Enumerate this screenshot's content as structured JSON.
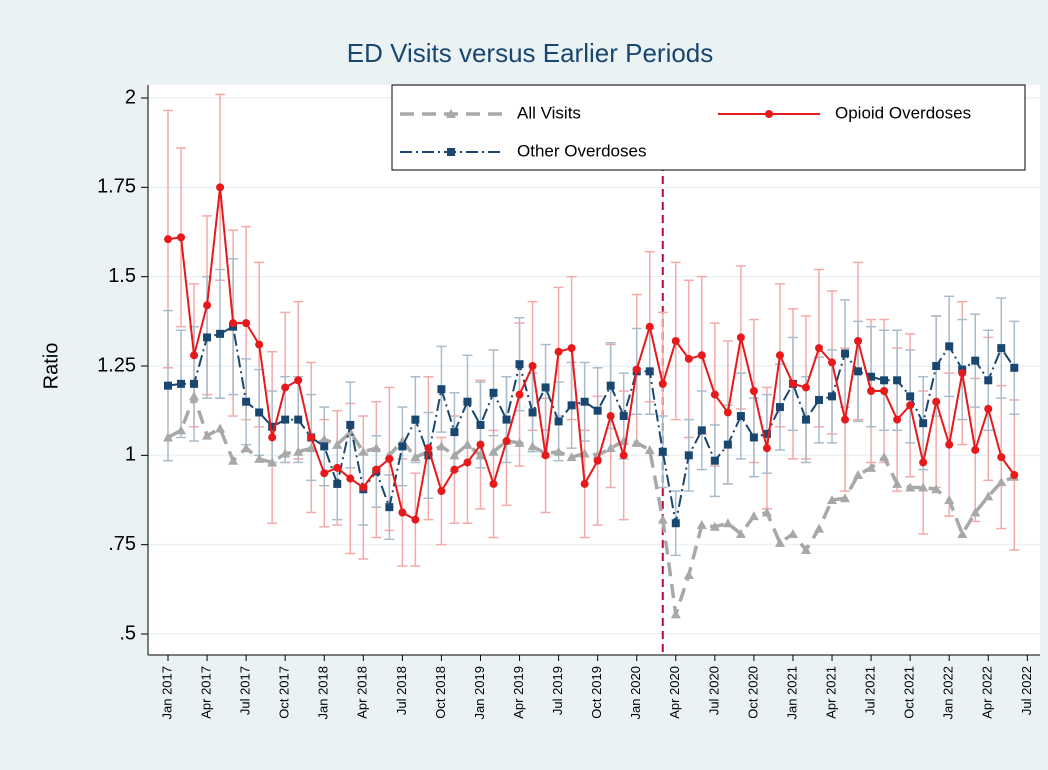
{
  "chart_data": {
    "type": "line",
    "title": "ED Visits versus Earlier Periods",
    "y_label": "Ratio",
    "x": [
      "2017-01",
      "2017-02",
      "2017-03",
      "2017-04",
      "2017-05",
      "2017-06",
      "2017-07",
      "2017-08",
      "2017-09",
      "2017-10",
      "2017-11",
      "2017-12",
      "2018-01",
      "2018-02",
      "2018-03",
      "2018-04",
      "2018-05",
      "2018-06",
      "2018-07",
      "2018-08",
      "2018-09",
      "2018-10",
      "2018-11",
      "2018-12",
      "2019-01",
      "2019-02",
      "2019-03",
      "2019-04",
      "2019-05",
      "2019-06",
      "2019-07",
      "2019-08",
      "2019-09",
      "2019-10",
      "2019-11",
      "2019-12",
      "2020-01",
      "2020-02",
      "2020-03",
      "2020-04",
      "2020-05",
      "2020-06",
      "2020-07",
      "2020-08",
      "2020-09",
      "2020-10",
      "2020-11",
      "2020-12",
      "2021-01",
      "2021-02",
      "2021-03",
      "2021-04",
      "2021-05",
      "2021-06",
      "2021-07",
      "2021-08",
      "2021-09",
      "2021-10",
      "2021-11",
      "2021-12",
      "2022-01",
      "2022-02",
      "2022-03",
      "2022-04",
      "2022-05",
      "2022-06"
    ],
    "series": [
      {
        "name": "All Visits",
        "color": "#a8a8a8",
        "marker": "triangle",
        "dash": "14 8",
        "values": [
          1.05,
          1.07,
          1.165,
          1.055,
          1.075,
          0.985,
          1.02,
          0.99,
          0.98,
          1.005,
          1.01,
          1.02,
          1.045,
          1.03,
          1.065,
          1.01,
          1.02,
          1.0,
          1.04,
          0.995,
          1.01,
          1.025,
          1.0,
          1.03,
          1.0,
          1.01,
          1.04,
          1.035,
          1.025,
          1.005,
          1.01,
          0.995,
          1.005,
          1.0,
          1.02,
          1.04,
          1.035,
          1.015,
          0.82,
          0.555,
          0.665,
          0.805,
          0.8,
          0.81,
          0.78,
          0.83,
          0.84,
          0.755,
          0.78,
          0.735,
          0.795,
          0.875,
          0.88,
          0.945,
          0.965,
          0.995,
          0.92,
          0.91,
          0.91,
          0.905,
          0.875,
          0.78,
          0.84,
          0.885,
          0.925,
          0.94
        ]
      },
      {
        "name": "Opioid Overdoses",
        "color": "#e8191b",
        "marker": "circle",
        "dash": "none",
        "error_color": "#f5a9a9",
        "values": [
          1.605,
          1.61,
          1.28,
          1.42,
          1.75,
          1.37,
          1.37,
          1.31,
          1.05,
          1.19,
          1.21,
          1.05,
          0.95,
          0.965,
          0.935,
          0.91,
          0.96,
          0.99,
          0.84,
          0.82,
          1.02,
          0.9,
          0.96,
          0.98,
          1.03,
          0.92,
          1.04,
          1.17,
          1.25,
          1.0,
          1.29,
          1.3,
          0.92,
          0.985,
          1.11,
          1.0,
          1.24,
          1.36,
          1.2,
          1.32,
          1.27,
          1.28,
          1.17,
          1.12,
          1.33,
          1.18,
          1.02,
          1.28,
          1.2,
          1.19,
          1.3,
          1.26,
          1.1,
          1.32,
          1.18,
          1.18,
          1.1,
          1.14,
          0.98,
          1.15,
          1.03,
          1.23,
          1.015,
          1.13,
          0.995,
          0.945
        ],
        "errors": [
          0.36,
          0.25,
          0.2,
          0.25,
          0.26,
          0.26,
          0.27,
          0.23,
          0.24,
          0.21,
          0.22,
          0.21,
          0.15,
          0.16,
          0.21,
          0.2,
          0.19,
          0.2,
          0.15,
          0.13,
          0.2,
          0.15,
          0.15,
          0.17,
          0.18,
          0.15,
          0.18,
          0.2,
          0.18,
          0.16,
          0.18,
          0.2,
          0.15,
          0.18,
          0.2,
          0.18,
          0.21,
          0.21,
          0.2,
          0.22,
          0.22,
          0.22,
          0.2,
          0.2,
          0.2,
          0.2,
          0.17,
          0.2,
          0.21,
          0.2,
          0.22,
          0.2,
          0.2,
          0.22,
          0.2,
          0.2,
          0.2,
          0.2,
          0.2,
          0.24,
          0.2,
          0.2,
          0.2,
          0.2,
          0.2,
          0.21
        ]
      },
      {
        "name": "Other Overdoses",
        "color": "#1a476f",
        "marker": "square",
        "dash": "12 4 2 4",
        "error_color": "#a9bccb",
        "values": [
          1.195,
          1.2,
          1.2,
          1.33,
          1.34,
          1.36,
          1.15,
          1.12,
          1.08,
          1.1,
          1.1,
          1.05,
          1.025,
          0.92,
          1.085,
          0.905,
          0.955,
          0.855,
          1.025,
          1.1,
          1.0,
          1.185,
          1.065,
          1.15,
          1.085,
          1.175,
          1.1,
          1.255,
          1.12,
          1.19,
          1.095,
          1.14,
          1.15,
          1.125,
          1.195,
          1.11,
          1.235,
          1.235,
          1.01,
          0.81,
          1.0,
          1.07,
          0.985,
          1.03,
          1.11,
          1.05,
          1.06,
          1.135,
          1.2,
          1.1,
          1.155,
          1.165,
          1.285,
          1.235,
          1.22,
          1.21,
          1.21,
          1.165,
          1.09,
          1.25,
          1.305,
          1.24,
          1.265,
          1.21,
          1.3,
          1.245
        ],
        "errors": [
          0.21,
          0.15,
          0.16,
          0.17,
          0.18,
          0.19,
          0.12,
          0.12,
          0.1,
          0.12,
          0.12,
          0.12,
          0.11,
          0.1,
          0.12,
          0.1,
          0.1,
          0.09,
          0.11,
          0.12,
          0.12,
          0.12,
          0.11,
          0.13,
          0.12,
          0.12,
          0.12,
          0.13,
          0.11,
          0.12,
          0.11,
          0.12,
          0.11,
          0.12,
          0.12,
          0.12,
          0.12,
          0.12,
          0.1,
          0.09,
          0.1,
          0.11,
          0.1,
          0.11,
          0.12,
          0.11,
          0.11,
          0.12,
          0.13,
          0.12,
          0.12,
          0.13,
          0.15,
          0.14,
          0.14,
          0.14,
          0.14,
          0.13,
          0.13,
          0.14,
          0.14,
          0.14,
          0.13,
          0.14,
          0.14,
          0.13
        ]
      }
    ],
    "ylim": [
      0.5,
      2
    ],
    "yticks": [
      {
        "value": 0.5,
        "label": ".5"
      },
      {
        "value": 0.75,
        "label": ".75"
      },
      1,
      1.25,
      1.5,
      1.75,
      2
    ],
    "xticks": [
      {
        "value": "2017-01",
        "label": "Jan 2017"
      },
      {
        "value": "2017-04",
        "label": "Apr 2017"
      },
      {
        "value": "2017-07",
        "label": "Jul 2017"
      },
      {
        "value": "2017-10",
        "label": "Oct 2017"
      },
      {
        "value": "2018-01",
        "label": "Jan 2018"
      },
      {
        "value": "2018-04",
        "label": "Apr 2018"
      },
      {
        "value": "2018-07",
        "label": "Jul 2018"
      },
      {
        "value": "2018-10",
        "label": "Oct 2018"
      },
      {
        "value": "2019-01",
        "label": "Jan 2019"
      },
      {
        "value": "2019-04",
        "label": "Apr 2019"
      },
      {
        "value": "2019-07",
        "label": "Jul 2019"
      },
      {
        "value": "2019-10",
        "label": "Oct 2019"
      },
      {
        "value": "2020-01",
        "label": "Jan 2020"
      },
      {
        "value": "2020-04",
        "label": "Apr 2020"
      },
      {
        "value": "2020-07",
        "label": "Jul 2020"
      },
      {
        "value": "2020-10",
        "label": "Oct 2020"
      },
      {
        "value": "2021-01",
        "label": "Jan 2021"
      },
      {
        "value": "2021-04",
        "label": "Apr 2021"
      },
      {
        "value": "2021-07",
        "label": "Jul 2021"
      },
      {
        "value": "2021-10",
        "label": "Oct 2021"
      },
      {
        "value": "2022-01",
        "label": "Jan 2022"
      },
      {
        "value": "2022-04",
        "label": "Apr 2022"
      },
      {
        "value": "2022-07",
        "label": "Jul 2022"
      }
    ],
    "vline": {
      "x": "2020-03",
      "color": "#c10534"
    },
    "grid": true,
    "legend": "top"
  }
}
